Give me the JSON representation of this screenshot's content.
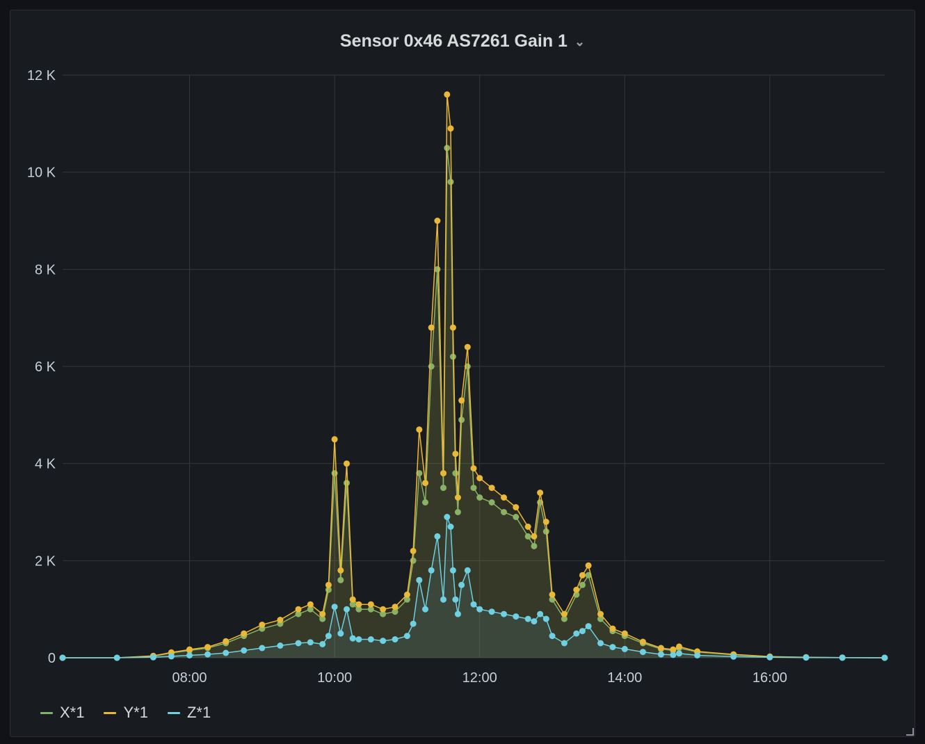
{
  "panel": {
    "title": "Sensor 0x46 AS7261 Gain 1",
    "menu_icon": "chevron-down-icon"
  },
  "chart_data": {
    "type": "line",
    "title": "Sensor 0x46 AS7261 Gain 1",
    "xlabel": "",
    "ylabel": "",
    "x_ticks": [
      "08:00",
      "10:00",
      "12:00",
      "14:00",
      "16:00"
    ],
    "y_ticks": [
      "0",
      "2 K",
      "4 K",
      "6 K",
      "8 K",
      "10 K",
      "12 K"
    ],
    "xlim": [
      "06:15",
      "17:35"
    ],
    "ylim": [
      0,
      12000
    ],
    "grid": true,
    "legend_position": "bottom-left",
    "x": [
      "06:15",
      "07:00",
      "07:30",
      "07:45",
      "08:00",
      "08:15",
      "08:30",
      "08:45",
      "09:00",
      "09:15",
      "09:30",
      "09:40",
      "09:50",
      "09:55",
      "10:00",
      "10:05",
      "10:10",
      "10:15",
      "10:20",
      "10:30",
      "10:40",
      "10:50",
      "11:00",
      "11:05",
      "11:10",
      "11:15",
      "11:20",
      "11:25",
      "11:30",
      "11:33",
      "11:36",
      "11:38",
      "11:40",
      "11:42",
      "11:45",
      "11:50",
      "11:55",
      "12:00",
      "12:10",
      "12:20",
      "12:30",
      "12:40",
      "12:45",
      "12:50",
      "12:55",
      "13:00",
      "13:10",
      "13:20",
      "13:25",
      "13:30",
      "13:40",
      "13:50",
      "14:00",
      "14:15",
      "14:30",
      "14:40",
      "14:45",
      "15:00",
      "15:30",
      "16:00",
      "16:30",
      "17:00",
      "17:35"
    ],
    "series": [
      {
        "name": "X*1",
        "color": "#7eb26d",
        "values": [
          0,
          0,
          30,
          100,
          150,
          200,
          300,
          450,
          600,
          700,
          900,
          1000,
          800,
          1400,
          3800,
          1600,
          3600,
          1100,
          1000,
          1000,
          900,
          950,
          1200,
          2000,
          3800,
          3200,
          6000,
          8000,
          3500,
          10500,
          9800,
          6200,
          3800,
          3000,
          4900,
          6000,
          3500,
          3300,
          3200,
          3000,
          2900,
          2500,
          2300,
          3200,
          2600,
          1200,
          800,
          1300,
          1500,
          1700,
          800,
          550,
          450,
          300,
          180,
          150,
          200,
          120,
          60,
          20,
          10,
          5,
          0
        ]
      },
      {
        "name": "Y*1",
        "color": "#eab839",
        "values": [
          0,
          0,
          40,
          110,
          170,
          220,
          340,
          500,
          680,
          780,
          1000,
          1100,
          900,
          1500,
          4500,
          1800,
          4000,
          1200,
          1100,
          1100,
          1000,
          1050,
          1300,
          2200,
          4700,
          3600,
          6800,
          9000,
          3800,
          11600,
          10900,
          6800,
          4200,
          3300,
          5300,
          6400,
          3900,
          3700,
          3500,
          3300,
          3100,
          2700,
          2500,
          3400,
          2800,
          1300,
          900,
          1400,
          1700,
          1900,
          900,
          600,
          500,
          330,
          200,
          170,
          230,
          130,
          70,
          25,
          10,
          5,
          0
        ]
      },
      {
        "name": "Z*1",
        "color": "#6ed0e0",
        "values": [
          0,
          0,
          10,
          30,
          50,
          70,
          100,
          150,
          200,
          250,
          300,
          320,
          280,
          450,
          1050,
          500,
          1000,
          400,
          380,
          380,
          350,
          380,
          450,
          700,
          1600,
          1000,
          1800,
          2500,
          1200,
          2900,
          2700,
          1800,
          1200,
          900,
          1500,
          1800,
          1100,
          1000,
          950,
          900,
          850,
          800,
          750,
          900,
          800,
          450,
          300,
          500,
          550,
          650,
          300,
          220,
          180,
          120,
          70,
          60,
          90,
          50,
          25,
          10,
          5,
          2,
          0
        ]
      }
    ]
  }
}
